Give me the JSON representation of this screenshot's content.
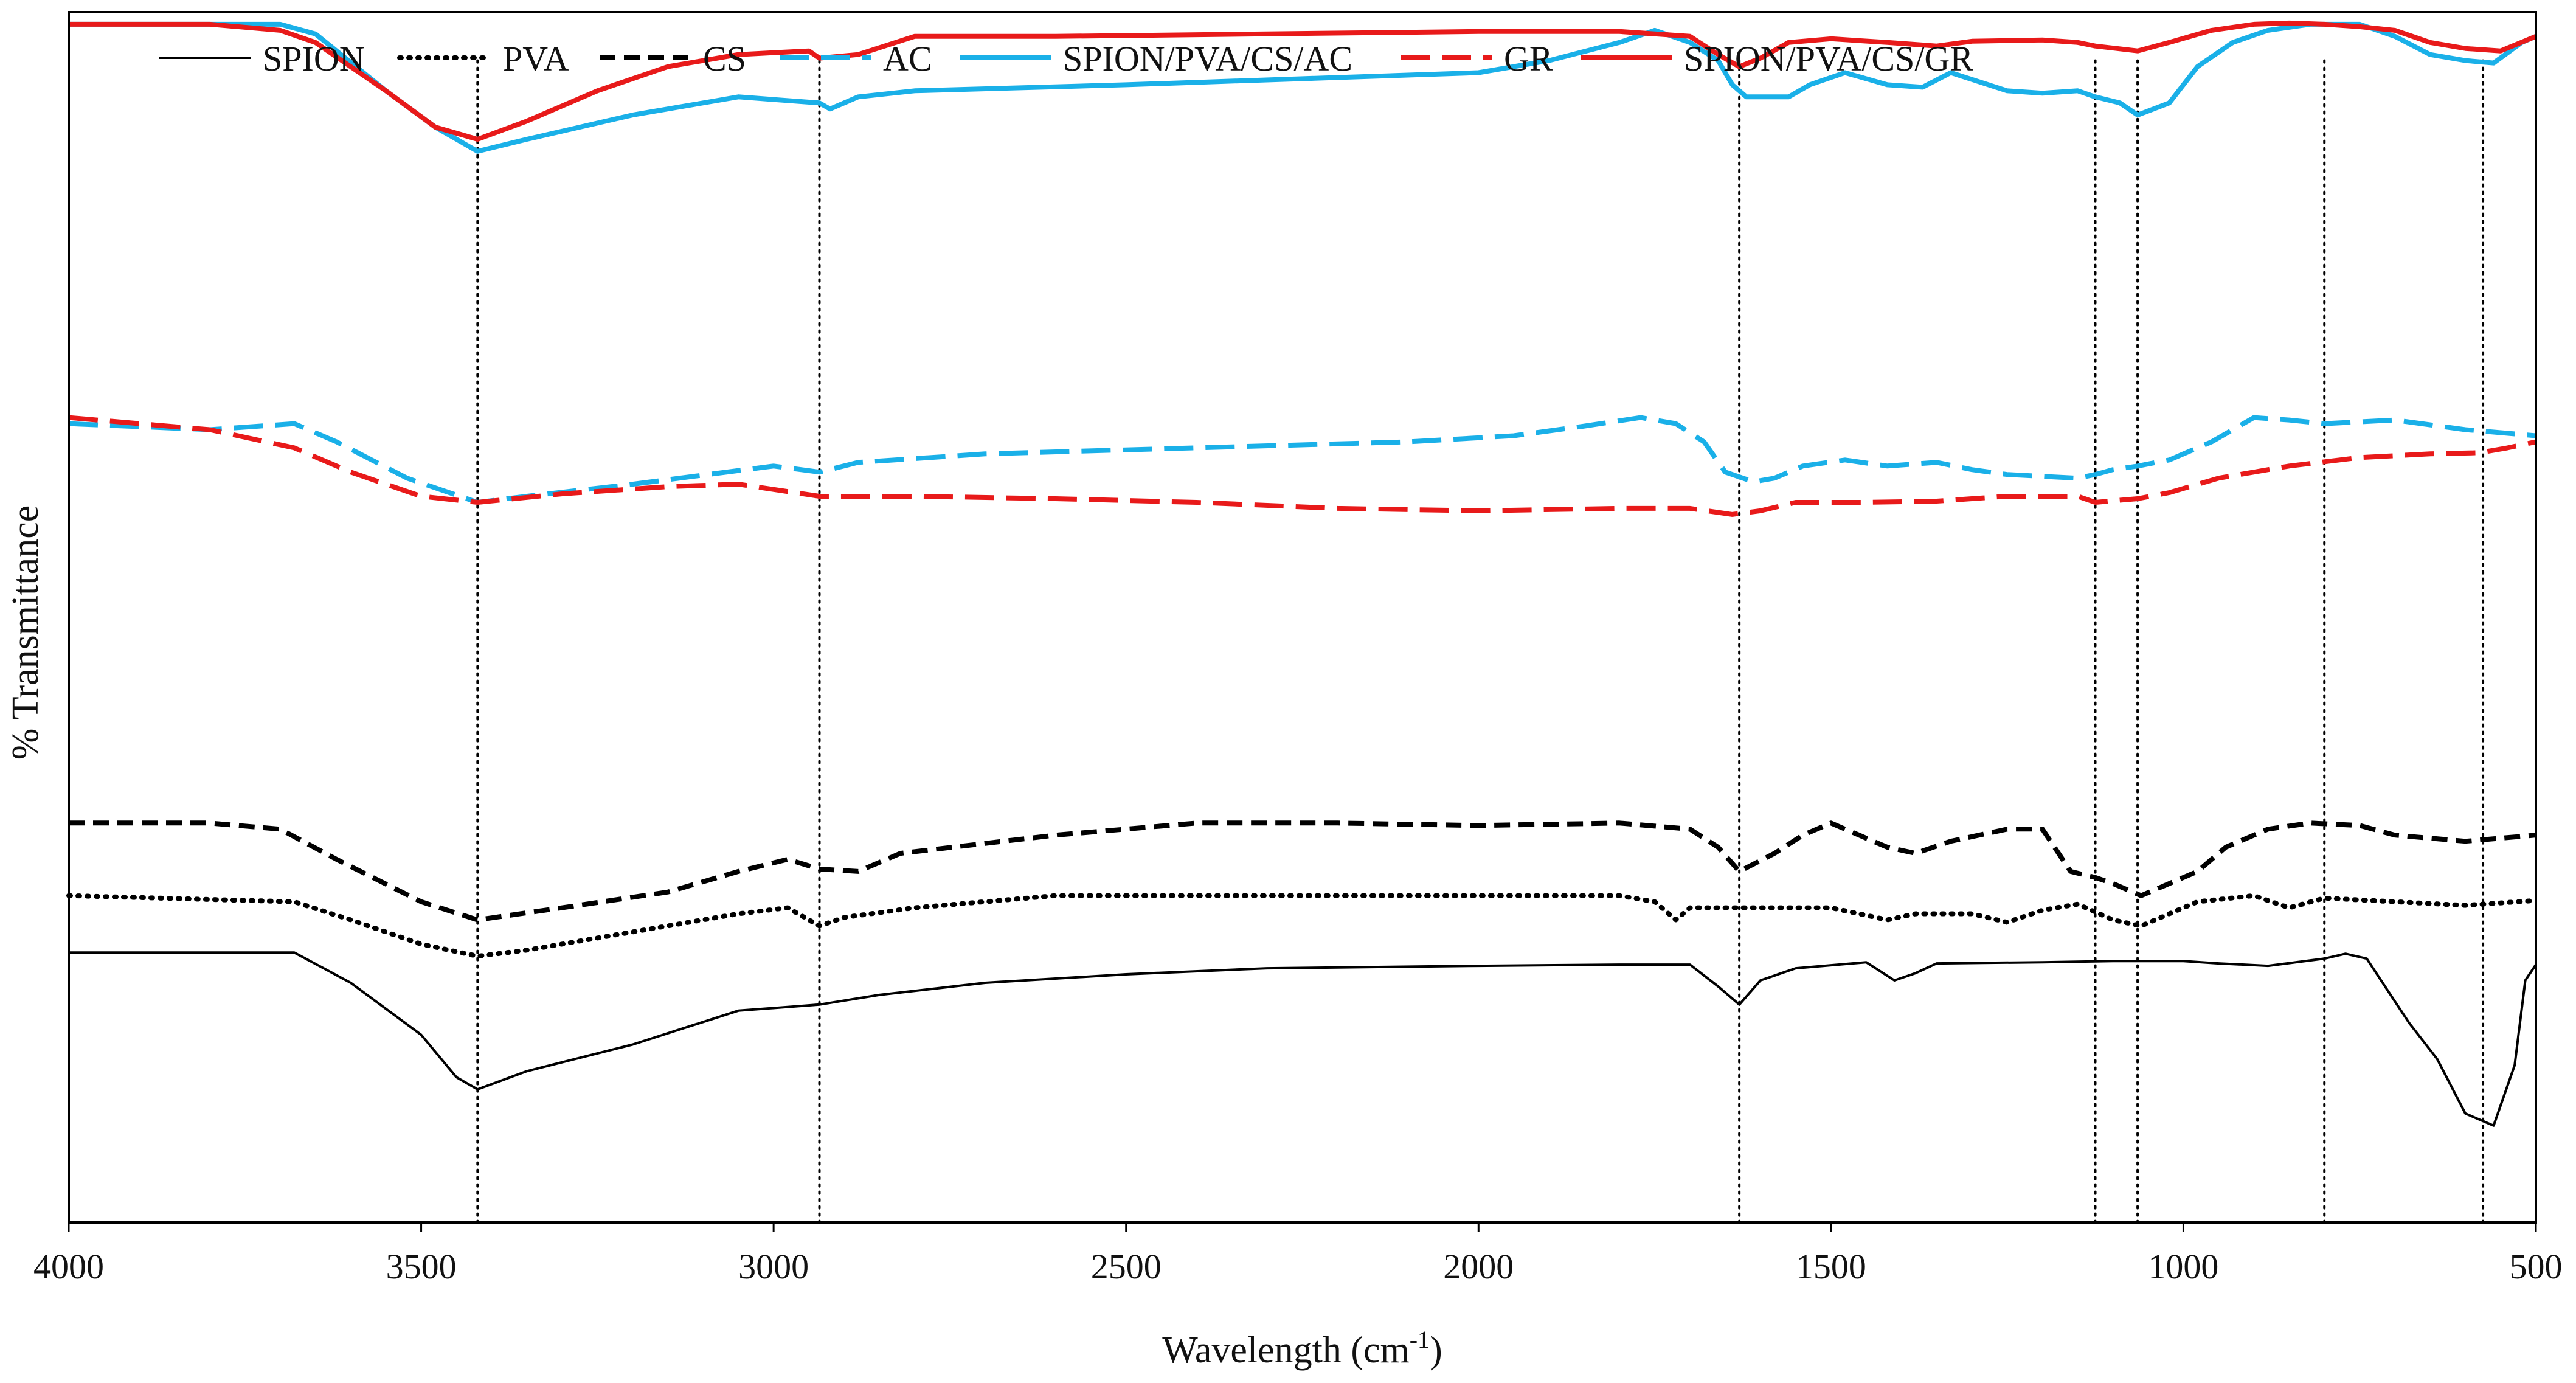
{
  "chart_data": {
    "type": "line",
    "title": "",
    "xlabel": "Wavelength (cm",
    "xlabel_sup": "-1",
    "xlabel_suffix": ")",
    "ylabel": "% Transmittance",
    "xlim": [
      4000,
      500
    ],
    "ylim": [
      0,
      100
    ],
    "x_ticks": [
      4000,
      3500,
      3000,
      2500,
      2000,
      1500,
      1000,
      500
    ],
    "x_tick_labels": [
      "4000",
      "3500",
      "3000",
      "2500",
      "2000",
      "1500",
      "1000",
      "500"
    ],
    "reference_lines": [
      3420,
      2935,
      1630,
      1125,
      1065,
      800,
      575
    ],
    "legend_position": "top",
    "series": [
      {
        "name": "SPION",
        "color": "#000000",
        "dash": "solid",
        "thick": false,
        "points": [
          [
            4000,
            22.3
          ],
          [
            3800,
            22.3
          ],
          [
            3680,
            22.3
          ],
          [
            3600,
            19.8
          ],
          [
            3500,
            15.5
          ],
          [
            3450,
            12.0
          ],
          [
            3420,
            11.0
          ],
          [
            3350,
            12.5
          ],
          [
            3200,
            14.7
          ],
          [
            3050,
            17.5
          ],
          [
            2935,
            18.0
          ],
          [
            2850,
            18.8
          ],
          [
            2700,
            19.8
          ],
          [
            2500,
            20.5
          ],
          [
            2300,
            21.0
          ],
          [
            2000,
            21.2
          ],
          [
            1800,
            21.3
          ],
          [
            1700,
            21.3
          ],
          [
            1660,
            19.5
          ],
          [
            1630,
            18.0
          ],
          [
            1600,
            20.0
          ],
          [
            1550,
            21.0
          ],
          [
            1450,
            21.5
          ],
          [
            1410,
            20.0
          ],
          [
            1380,
            20.6
          ],
          [
            1350,
            21.4
          ],
          [
            1200,
            21.5
          ],
          [
            1100,
            21.6
          ],
          [
            1000,
            21.6
          ],
          [
            950,
            21.4
          ],
          [
            880,
            21.2
          ],
          [
            800,
            21.8
          ],
          [
            770,
            22.2
          ],
          [
            740,
            21.8
          ],
          [
            680,
            16.5
          ],
          [
            640,
            13.5
          ],
          [
            600,
            9.0
          ],
          [
            560,
            8.0
          ],
          [
            530,
            13.0
          ],
          [
            515,
            20.0
          ],
          [
            500,
            21.3
          ]
        ]
      },
      {
        "name": "PVA",
        "color": "#000000",
        "dash": "dotted",
        "thick": true,
        "points": [
          [
            4000,
            27.0
          ],
          [
            3680,
            26.5
          ],
          [
            3600,
            25.0
          ],
          [
            3500,
            23.0
          ],
          [
            3420,
            22.0
          ],
          [
            3350,
            22.5
          ],
          [
            3200,
            24.0
          ],
          [
            3050,
            25.5
          ],
          [
            2980,
            26.0
          ],
          [
            2935,
            24.5
          ],
          [
            2900,
            25.2
          ],
          [
            2800,
            26.0
          ],
          [
            2600,
            27.0
          ],
          [
            2200,
            27.0
          ],
          [
            1800,
            27.0
          ],
          [
            1750,
            26.5
          ],
          [
            1720,
            25.0
          ],
          [
            1700,
            26.0
          ],
          [
            1630,
            26.0
          ],
          [
            1500,
            26.0
          ],
          [
            1460,
            25.5
          ],
          [
            1420,
            25.0
          ],
          [
            1380,
            25.5
          ],
          [
            1300,
            25.5
          ],
          [
            1250,
            24.8
          ],
          [
            1200,
            25.8
          ],
          [
            1150,
            26.3
          ],
          [
            1100,
            25.0
          ],
          [
            1060,
            24.5
          ],
          [
            1020,
            25.5
          ],
          [
            980,
            26.5
          ],
          [
            900,
            27.0
          ],
          [
            850,
            26.0
          ],
          [
            800,
            26.8
          ],
          [
            700,
            26.5
          ],
          [
            600,
            26.2
          ],
          [
            500,
            26.6
          ]
        ]
      },
      {
        "name": "CS",
        "color": "#000000",
        "dash": "dashed",
        "thick": true,
        "points": [
          [
            4000,
            33.0
          ],
          [
            3800,
            33.0
          ],
          [
            3700,
            32.5
          ],
          [
            3620,
            30.0
          ],
          [
            3500,
            26.5
          ],
          [
            3420,
            25.0
          ],
          [
            3300,
            26.0
          ],
          [
            3150,
            27.3
          ],
          [
            3050,
            29.0
          ],
          [
            2980,
            30.0
          ],
          [
            2935,
            29.2
          ],
          [
            2880,
            29.0
          ],
          [
            2820,
            30.5
          ],
          [
            2600,
            32.0
          ],
          [
            2400,
            33.0
          ],
          [
            2200,
            33.0
          ],
          [
            2000,
            32.8
          ],
          [
            1800,
            33.0
          ],
          [
            1700,
            32.5
          ],
          [
            1660,
            31.0
          ],
          [
            1630,
            29.0
          ],
          [
            1580,
            30.5
          ],
          [
            1540,
            32.0
          ],
          [
            1500,
            33.0
          ],
          [
            1460,
            32.0
          ],
          [
            1420,
            31.0
          ],
          [
            1380,
            30.5
          ],
          [
            1330,
            31.5
          ],
          [
            1250,
            32.5
          ],
          [
            1200,
            32.5
          ],
          [
            1160,
            29.0
          ],
          [
            1125,
            28.5
          ],
          [
            1100,
            28.0
          ],
          [
            1060,
            27.0
          ],
          [
            1020,
            28.0
          ],
          [
            980,
            29.0
          ],
          [
            940,
            31.0
          ],
          [
            880,
            32.5
          ],
          [
            820,
            33.0
          ],
          [
            750,
            32.8
          ],
          [
            700,
            32.0
          ],
          [
            600,
            31.5
          ],
          [
            500,
            32.0
          ]
        ]
      },
      {
        "name": "AC",
        "color": "#1ab0e8",
        "dash": "longdash",
        "thick": true,
        "points": [
          [
            4000,
            66.0
          ],
          [
            3800,
            65.5
          ],
          [
            3680,
            66.0
          ],
          [
            3620,
            64.5
          ],
          [
            3520,
            61.5
          ],
          [
            3420,
            59.5
          ],
          [
            3350,
            60.0
          ],
          [
            3200,
            61.0
          ],
          [
            3000,
            62.5
          ],
          [
            2935,
            62.0
          ],
          [
            2880,
            62.8
          ],
          [
            2700,
            63.5
          ],
          [
            2400,
            64.0
          ],
          [
            2100,
            64.5
          ],
          [
            1950,
            65.0
          ],
          [
            1850,
            65.8
          ],
          [
            1770,
            66.5
          ],
          [
            1720,
            66.0
          ],
          [
            1680,
            64.5
          ],
          [
            1650,
            62.0
          ],
          [
            1610,
            61.2
          ],
          [
            1580,
            61.5
          ],
          [
            1540,
            62.5
          ],
          [
            1480,
            63.0
          ],
          [
            1420,
            62.5
          ],
          [
            1350,
            62.8
          ],
          [
            1300,
            62.2
          ],
          [
            1250,
            61.8
          ],
          [
            1150,
            61.5
          ],
          [
            1125,
            61.8
          ],
          [
            1100,
            62.2
          ],
          [
            1065,
            62.5
          ],
          [
            1020,
            63.0
          ],
          [
            960,
            64.5
          ],
          [
            900,
            66.5
          ],
          [
            850,
            66.3
          ],
          [
            800,
            66.0
          ],
          [
            700,
            66.3
          ],
          [
            600,
            65.5
          ],
          [
            500,
            65.0
          ]
        ]
      },
      {
        "name": "SPION/PVA/CS/AC",
        "color": "#1ab0e8",
        "dash": "solid",
        "thick": true,
        "points": [
          [
            4000,
            99.0
          ],
          [
            3800,
            99.0
          ],
          [
            3700,
            99.0
          ],
          [
            3650,
            98.2
          ],
          [
            3550,
            93.5
          ],
          [
            3480,
            90.5
          ],
          [
            3420,
            88.5
          ],
          [
            3350,
            89.5
          ],
          [
            3200,
            91.5
          ],
          [
            3050,
            93.0
          ],
          [
            2935,
            92.5
          ],
          [
            2920,
            92.0
          ],
          [
            2880,
            93.0
          ],
          [
            2800,
            93.5
          ],
          [
            2500,
            94.0
          ],
          [
            2000,
            95.0
          ],
          [
            1900,
            96.0
          ],
          [
            1800,
            97.5
          ],
          [
            1750,
            98.5
          ],
          [
            1700,
            97.5
          ],
          [
            1660,
            96.0
          ],
          [
            1640,
            94.0
          ],
          [
            1620,
            93.0
          ],
          [
            1560,
            93.0
          ],
          [
            1530,
            94.0
          ],
          [
            1480,
            95.0
          ],
          [
            1420,
            94.0
          ],
          [
            1370,
            93.8
          ],
          [
            1330,
            95.0
          ],
          [
            1250,
            93.5
          ],
          [
            1200,
            93.3
          ],
          [
            1150,
            93.5
          ],
          [
            1125,
            93.0
          ],
          [
            1090,
            92.5
          ],
          [
            1065,
            91.5
          ],
          [
            1020,
            92.5
          ],
          [
            980,
            95.5
          ],
          [
            930,
            97.5
          ],
          [
            880,
            98.5
          ],
          [
            820,
            99.0
          ],
          [
            750,
            99.0
          ],
          [
            700,
            98.0
          ],
          [
            650,
            96.5
          ],
          [
            600,
            96.0
          ],
          [
            560,
            95.8
          ],
          [
            520,
            97.5
          ],
          [
            500,
            98.0
          ]
        ]
      },
      {
        "name": "GR",
        "color": "#e81a1a",
        "dash": "longdash",
        "thick": true,
        "points": [
          [
            4000,
            66.5
          ],
          [
            3800,
            65.5
          ],
          [
            3680,
            64.0
          ],
          [
            3600,
            62.0
          ],
          [
            3500,
            60.0
          ],
          [
            3420,
            59.5
          ],
          [
            3300,
            60.2
          ],
          [
            3150,
            60.8
          ],
          [
            3050,
            61.0
          ],
          [
            2935,
            60.0
          ],
          [
            2800,
            60.0
          ],
          [
            2600,
            59.8
          ],
          [
            2400,
            59.5
          ],
          [
            2200,
            59.0
          ],
          [
            2000,
            58.8
          ],
          [
            1800,
            59.0
          ],
          [
            1700,
            59.0
          ],
          [
            1640,
            58.5
          ],
          [
            1600,
            58.8
          ],
          [
            1550,
            59.5
          ],
          [
            1450,
            59.5
          ],
          [
            1350,
            59.6
          ],
          [
            1250,
            60.0
          ],
          [
            1150,
            60.0
          ],
          [
            1125,
            59.5
          ],
          [
            1065,
            59.8
          ],
          [
            1020,
            60.3
          ],
          [
            950,
            61.5
          ],
          [
            850,
            62.5
          ],
          [
            750,
            63.2
          ],
          [
            650,
            63.5
          ],
          [
            580,
            63.6
          ],
          [
            540,
            64.0
          ],
          [
            500,
            64.5
          ]
        ]
      },
      {
        "name": "SPION/PVA/CS/GR",
        "color": "#e81a1a",
        "dash": "solid",
        "thick": true,
        "points": [
          [
            4000,
            99.0
          ],
          [
            3800,
            99.0
          ],
          [
            3700,
            98.5
          ],
          [
            3650,
            97.5
          ],
          [
            3550,
            93.5
          ],
          [
            3480,
            90.5
          ],
          [
            3420,
            89.5
          ],
          [
            3350,
            91.0
          ],
          [
            3250,
            93.5
          ],
          [
            3150,
            95.5
          ],
          [
            3050,
            96.5
          ],
          [
            2950,
            96.8
          ],
          [
            2935,
            96.2
          ],
          [
            2880,
            96.5
          ],
          [
            2800,
            98.0
          ],
          [
            2600,
            98.0
          ],
          [
            2300,
            98.2
          ],
          [
            2000,
            98.4
          ],
          [
            1800,
            98.4
          ],
          [
            1700,
            98.0
          ],
          [
            1660,
            96.5
          ],
          [
            1630,
            95.5
          ],
          [
            1600,
            96.2
          ],
          [
            1560,
            97.5
          ],
          [
            1500,
            97.8
          ],
          [
            1420,
            97.5
          ],
          [
            1350,
            97.2
          ],
          [
            1300,
            97.6
          ],
          [
            1200,
            97.7
          ],
          [
            1150,
            97.5
          ],
          [
            1125,
            97.2
          ],
          [
            1065,
            96.8
          ],
          [
            1020,
            97.5
          ],
          [
            960,
            98.5
          ],
          [
            900,
            99.0
          ],
          [
            850,
            99.1
          ],
          [
            800,
            99.0
          ],
          [
            750,
            98.8
          ],
          [
            700,
            98.5
          ],
          [
            650,
            97.5
          ],
          [
            600,
            97.0
          ],
          [
            550,
            96.8
          ],
          [
            500,
            98.0
          ]
        ]
      }
    ]
  }
}
